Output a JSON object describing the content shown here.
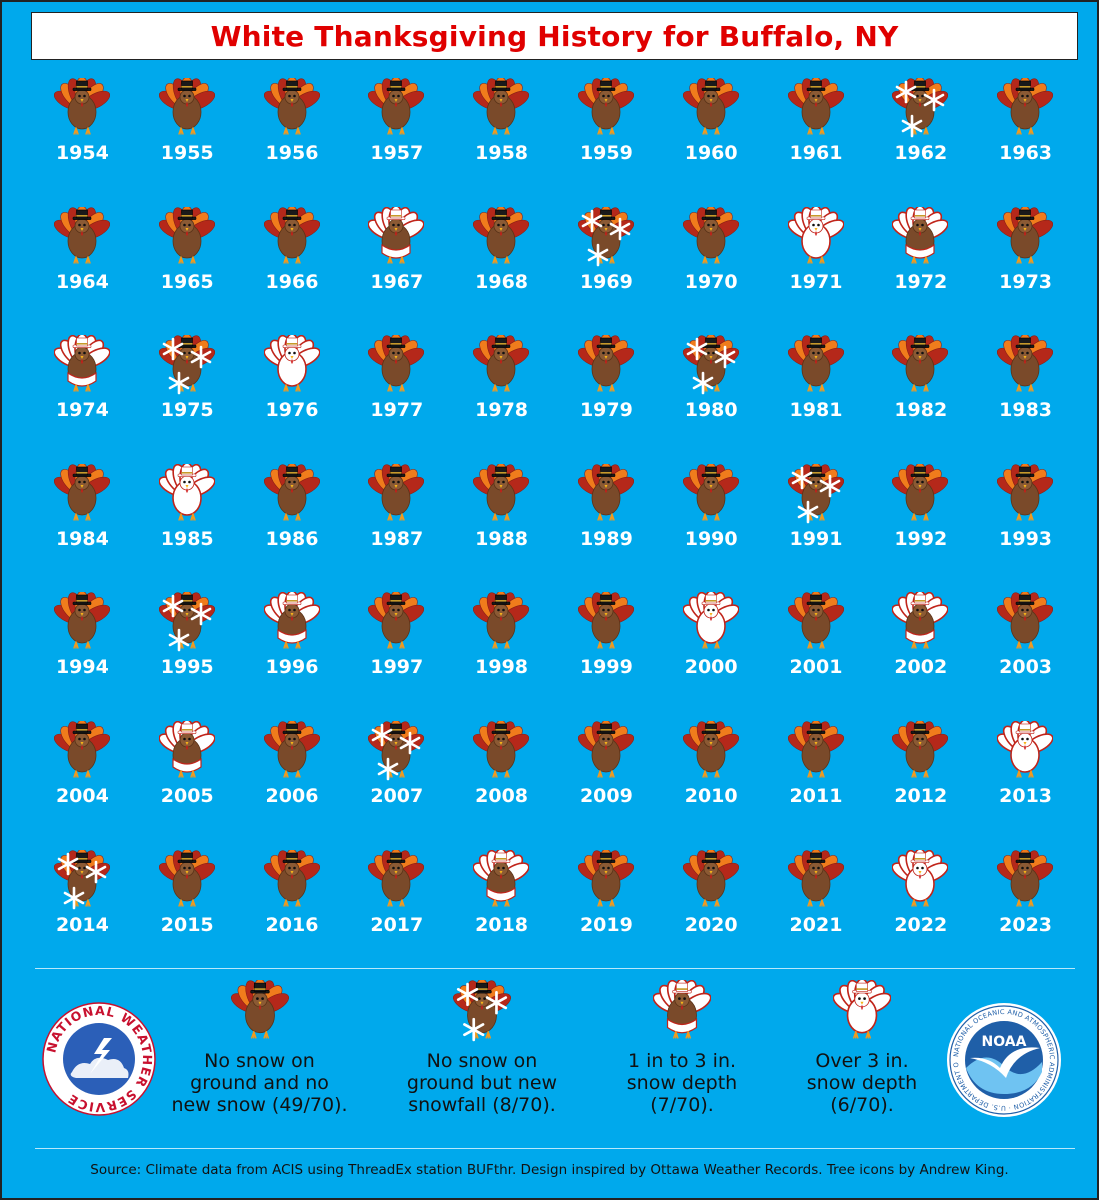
{
  "title": "White Thanksgiving History for Buffalo, NY",
  "icon_key": {
    "N": "no-snow-turkey-icon",
    "F": "new-snowfall-turkey-icon",
    "L": "light-snow-depth-turkey-icon",
    "H": "heavy-snow-depth-turkey-icon"
  },
  "colors": {
    "background": "#00a9ec",
    "title_text": "#e00000",
    "year_text": "#ffffff",
    "turkey_body": "#7a4a2a",
    "turkey_feather_dark": "#b5281a",
    "turkey_feather_orange": "#f07c1c",
    "snow": "#ffffff"
  },
  "years": [
    {
      "year": "1954",
      "c": "N"
    },
    {
      "year": "1955",
      "c": "N"
    },
    {
      "year": "1956",
      "c": "N"
    },
    {
      "year": "1957",
      "c": "N"
    },
    {
      "year": "1958",
      "c": "N"
    },
    {
      "year": "1959",
      "c": "N"
    },
    {
      "year": "1960",
      "c": "N"
    },
    {
      "year": "1961",
      "c": "N"
    },
    {
      "year": "1962",
      "c": "F"
    },
    {
      "year": "1963",
      "c": "N"
    },
    {
      "year": "1964",
      "c": "N"
    },
    {
      "year": "1965",
      "c": "N"
    },
    {
      "year": "1966",
      "c": "N"
    },
    {
      "year": "1967",
      "c": "L"
    },
    {
      "year": "1968",
      "c": "N"
    },
    {
      "year": "1969",
      "c": "F"
    },
    {
      "year": "1970",
      "c": "N"
    },
    {
      "year": "1971",
      "c": "H"
    },
    {
      "year": "1972",
      "c": "L"
    },
    {
      "year": "1973",
      "c": "N"
    },
    {
      "year": "1974",
      "c": "L"
    },
    {
      "year": "1975",
      "c": "F"
    },
    {
      "year": "1976",
      "c": "H"
    },
    {
      "year": "1977",
      "c": "N"
    },
    {
      "year": "1978",
      "c": "N"
    },
    {
      "year": "1979",
      "c": "N"
    },
    {
      "year": "1980",
      "c": "F"
    },
    {
      "year": "1981",
      "c": "N"
    },
    {
      "year": "1982",
      "c": "N"
    },
    {
      "year": "1983",
      "c": "N"
    },
    {
      "year": "1984",
      "c": "N"
    },
    {
      "year": "1985",
      "c": "H"
    },
    {
      "year": "1986",
      "c": "N"
    },
    {
      "year": "1987",
      "c": "N"
    },
    {
      "year": "1988",
      "c": "N"
    },
    {
      "year": "1989",
      "c": "N"
    },
    {
      "year": "1990",
      "c": "N"
    },
    {
      "year": "1991",
      "c": "F"
    },
    {
      "year": "1992",
      "c": "N"
    },
    {
      "year": "1993",
      "c": "N"
    },
    {
      "year": "1994",
      "c": "N"
    },
    {
      "year": "1995",
      "c": "F"
    },
    {
      "year": "1996",
      "c": "L"
    },
    {
      "year": "1997",
      "c": "N"
    },
    {
      "year": "1998",
      "c": "N"
    },
    {
      "year": "1999",
      "c": "N"
    },
    {
      "year": "2000",
      "c": "H"
    },
    {
      "year": "2001",
      "c": "N"
    },
    {
      "year": "2002",
      "c": "L"
    },
    {
      "year": "2003",
      "c": "N"
    },
    {
      "year": "2004",
      "c": "N"
    },
    {
      "year": "2005",
      "c": "L"
    },
    {
      "year": "2006",
      "c": "N"
    },
    {
      "year": "2007",
      "c": "F"
    },
    {
      "year": "2008",
      "c": "N"
    },
    {
      "year": "2009",
      "c": "N"
    },
    {
      "year": "2010",
      "c": "N"
    },
    {
      "year": "2011",
      "c": "N"
    },
    {
      "year": "2012",
      "c": "N"
    },
    {
      "year": "2013",
      "c": "H"
    },
    {
      "year": "2014",
      "c": "F"
    },
    {
      "year": "2015",
      "c": "N"
    },
    {
      "year": "2016",
      "c": "N"
    },
    {
      "year": "2017",
      "c": "N"
    },
    {
      "year": "2018",
      "c": "L"
    },
    {
      "year": "2019",
      "c": "N"
    },
    {
      "year": "2020",
      "c": "N"
    },
    {
      "year": "2021",
      "c": "N"
    },
    {
      "year": "2022",
      "c": "H"
    },
    {
      "year": "2023",
      "c": "N"
    }
  ],
  "legend": [
    {
      "c": "N",
      "line1": "No snow on",
      "line2": "ground and no",
      "line3": "new snow (49/70)."
    },
    {
      "c": "F",
      "line1": "No snow on",
      "line2": "ground but new",
      "line3": "snowfall (8/70)."
    },
    {
      "c": "L",
      "line1": "1 in to 3 in.",
      "line2": "snow depth",
      "line3": "(7/70)."
    },
    {
      "c": "H",
      "line1": "Over 3 in.",
      "line2": "snow depth",
      "line3": "(6/70)."
    }
  ],
  "logos": {
    "nws_text": "NATIONAL WEATHER SERVICE",
    "noaa_text": "NOAA",
    "noaa_ring_text": "NATIONAL OCEANIC AND ATMOSPHERIC ADMINISTRATION · U.S. DEPARTMENT OF COMMERCE"
  },
  "source": "Source: Climate data from ACIS using ThreadEx station BUFthr. Design inspired by Ottawa Weather Records. Tree icons by Andrew King."
}
